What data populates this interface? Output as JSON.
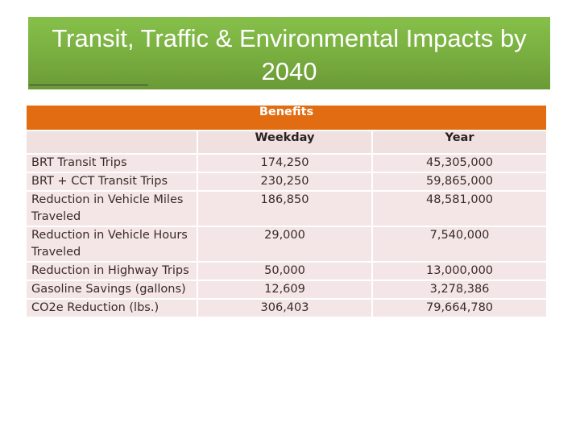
{
  "title": "Transit, Traffic & Environmental Impacts by 2040",
  "table": {
    "banner": "Benefits",
    "headers": [
      "",
      "Weekday",
      "Year"
    ],
    "rows": [
      {
        "label": "BRT Transit Trips",
        "weekday": "174,250",
        "year": "45,305,000"
      },
      {
        "label": "BRT + CCT Transit Trips",
        "weekday": "230,250",
        "year": "59,865,000"
      },
      {
        "label": "Reduction in Vehicle Miles Traveled",
        "weekday": "186,850",
        "year": "48,581,000"
      },
      {
        "label": "Reduction in Vehicle Hours Traveled",
        "weekday": "29,000",
        "year": "7,540,000"
      },
      {
        "label": "Reduction in Highway Trips",
        "weekday": "50,000",
        "year": "13,000,000"
      },
      {
        "label": "Gasoline Savings (gallons)",
        "weekday": "12,609",
        "year": "3,278,386"
      },
      {
        "label": "CO2e Reduction (lbs.)",
        "weekday": "306,403",
        "year": "79,664,780"
      }
    ]
  },
  "colors": {
    "title_bg": "#7cb342",
    "banner_bg": "#e26c12",
    "cell_bg": "#f4e6e6"
  }
}
